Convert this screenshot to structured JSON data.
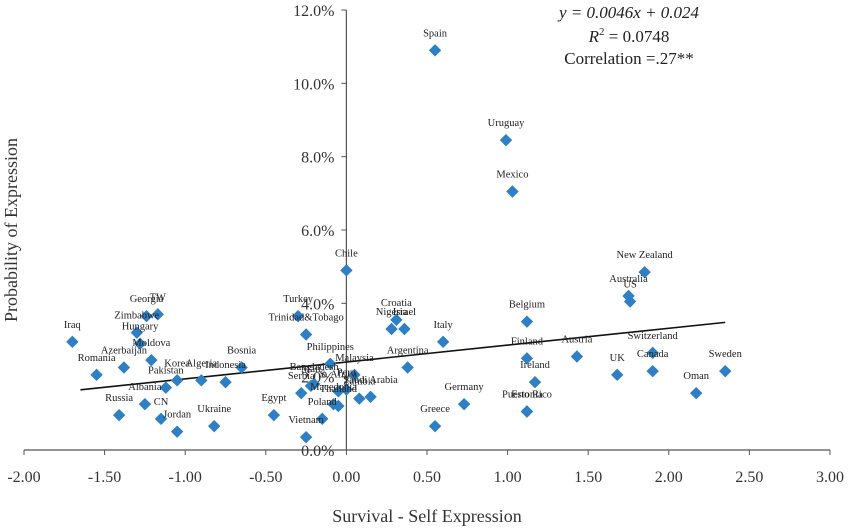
{
  "chart_data": {
    "type": "scatter",
    "xlabel": "Survival - Self Expression",
    "ylabel": "Probability of Expression",
    "xlim": [
      -2.0,
      3.0
    ],
    "ylim": [
      0.0,
      0.12
    ],
    "x_ticks": [
      "-2.00",
      "-1.50",
      "-1.00",
      "-0.50",
      "0.00",
      "0.50",
      "1.00",
      "1.50",
      "2.00",
      "2.50",
      "3.00"
    ],
    "y_ticks": [
      "0.0%",
      "2.0%",
      "4.0%",
      "6.0%",
      "8.0%",
      "10.0%",
      "12.0%"
    ],
    "annotations": {
      "equation": "y = 0.0046x + 0.024",
      "r2_symbol": "R",
      "r2_sup": "2",
      "r2_value": " = 0.0748",
      "correlation": "Correlation =.27**"
    },
    "trendline": {
      "slope": 0.0046,
      "intercept": 0.024,
      "x_range": [
        -1.65,
        2.35
      ]
    },
    "points": [
      {
        "label": "Spain",
        "x": 0.55,
        "y": 0.109
      },
      {
        "label": "Uruguay",
        "x": 0.99,
        "y": 0.0845
      },
      {
        "label": "Mexico",
        "x": 1.03,
        "y": 0.0705
      },
      {
        "label": "Chile",
        "x": 0.0,
        "y": 0.049
      },
      {
        "label": "New Zealand",
        "x": 1.85,
        "y": 0.0485
      },
      {
        "label": "Australia",
        "x": 1.75,
        "y": 0.042
      },
      {
        "label": "US",
        "x": 1.76,
        "y": 0.0405
      },
      {
        "label": "TW",
        "x": -1.17,
        "y": 0.037
      },
      {
        "label": "Georgia",
        "x": -1.24,
        "y": 0.0365
      },
      {
        "label": "Turkey",
        "x": -0.3,
        "y": 0.0365
      },
      {
        "label": "Croatia",
        "x": 0.31,
        "y": 0.0355
      },
      {
        "label": "Belgium",
        "x": 1.12,
        "y": 0.035
      },
      {
        "label": "Nigeria",
        "x": 0.28,
        "y": 0.033
      },
      {
        "label": "Israel",
        "x": 0.36,
        "y": 0.033
      },
      {
        "label": "Zimbabwe",
        "x": -1.3,
        "y": 0.032
      },
      {
        "label": "Trinidad&Tobago",
        "x": -0.25,
        "y": 0.0315
      },
      {
        "label": "Iraq",
        "x": -1.7,
        "y": 0.0295
      },
      {
        "label": "Italy",
        "x": 0.6,
        "y": 0.0295
      },
      {
        "label": "Hungary",
        "x": -1.28,
        "y": 0.029
      },
      {
        "label": "Finland",
        "x": 1.12,
        "y": 0.025
      },
      {
        "label": "Austria",
        "x": 1.43,
        "y": 0.0255
      },
      {
        "label": "Switzerland",
        "x": 1.9,
        "y": 0.0265
      },
      {
        "label": "Azerbaijan",
        "x": -1.38,
        "y": 0.0225
      },
      {
        "label": "Bosnia",
        "x": -0.65,
        "y": 0.0225
      },
      {
        "label": "Canada",
        "x": 1.9,
        "y": 0.0215
      },
      {
        "label": "Sweden",
        "x": 2.35,
        "y": 0.0215
      },
      {
        "label": "Argentina",
        "x": 0.38,
        "y": 0.0225
      },
      {
        "label": "Philippines",
        "x": -0.1,
        "y": 0.0235
      },
      {
        "label": "UK",
        "x": 1.68,
        "y": 0.0205
      },
      {
        "label": "Romania",
        "x": -1.55,
        "y": 0.0205
      },
      {
        "label": "Moldova",
        "x": -1.21,
        "y": 0.0245
      },
      {
        "label": "Korea",
        "x": -1.05,
        "y": 0.019
      },
      {
        "label": "Algeria",
        "x": -0.9,
        "y": 0.019
      },
      {
        "label": "Indonesia",
        "x": -0.75,
        "y": 0.0185
      },
      {
        "label": "Malaysia",
        "x": 0.05,
        "y": 0.0205
      },
      {
        "label": "Peru",
        "x": 0.0,
        "y": 0.0165
      },
      {
        "label": "Saudi Arabia",
        "x": 0.15,
        "y": 0.0145
      },
      {
        "label": "S. Africa",
        "x": -0.05,
        "y": 0.016
      },
      {
        "label": "Ireland",
        "x": 1.17,
        "y": 0.0185
      },
      {
        "label": "Pakistan",
        "x": -1.12,
        "y": 0.017
      },
      {
        "label": "Germany",
        "x": 0.73,
        "y": 0.0125
      },
      {
        "label": "Oman",
        "x": 2.17,
        "y": 0.0155
      },
      {
        "label": "Puerto Rico",
        "x": 1.12,
        "y": 0.0105
      },
      {
        "label": "Estonia",
        "x": 1.12,
        "y": 0.0105
      },
      {
        "label": "Russia",
        "x": -1.41,
        "y": 0.0095
      },
      {
        "label": "Albania",
        "x": -1.25,
        "y": 0.0125
      },
      {
        "label": "CN",
        "x": -1.15,
        "y": 0.0085
      },
      {
        "label": "Jordan",
        "x": -1.05,
        "y": 0.005
      },
      {
        "label": "Ukraine",
        "x": -0.82,
        "y": 0.0065
      },
      {
        "label": "Egypt",
        "x": -0.45,
        "y": 0.0095
      },
      {
        "label": "Poland",
        "x": -0.15,
        "y": 0.0085
      },
      {
        "label": "Thailand",
        "x": -0.05,
        "y": 0.012
      },
      {
        "label": "Vietnam",
        "x": -0.25,
        "y": 0.0035
      },
      {
        "label": "Greece",
        "x": 0.55,
        "y": 0.0065
      },
      {
        "label": "Serbia",
        "x": -0.28,
        "y": 0.0155
      },
      {
        "label": "Bangladesh",
        "x": -0.2,
        "y": 0.018
      },
      {
        "label": "Mali",
        "x": -0.22,
        "y": 0.0175
      },
      {
        "label": "Macedonia",
        "x": -0.08,
        "y": 0.0125
      },
      {
        "label": "Zambia",
        "x": 0.08,
        "y": 0.014
      }
    ]
  }
}
